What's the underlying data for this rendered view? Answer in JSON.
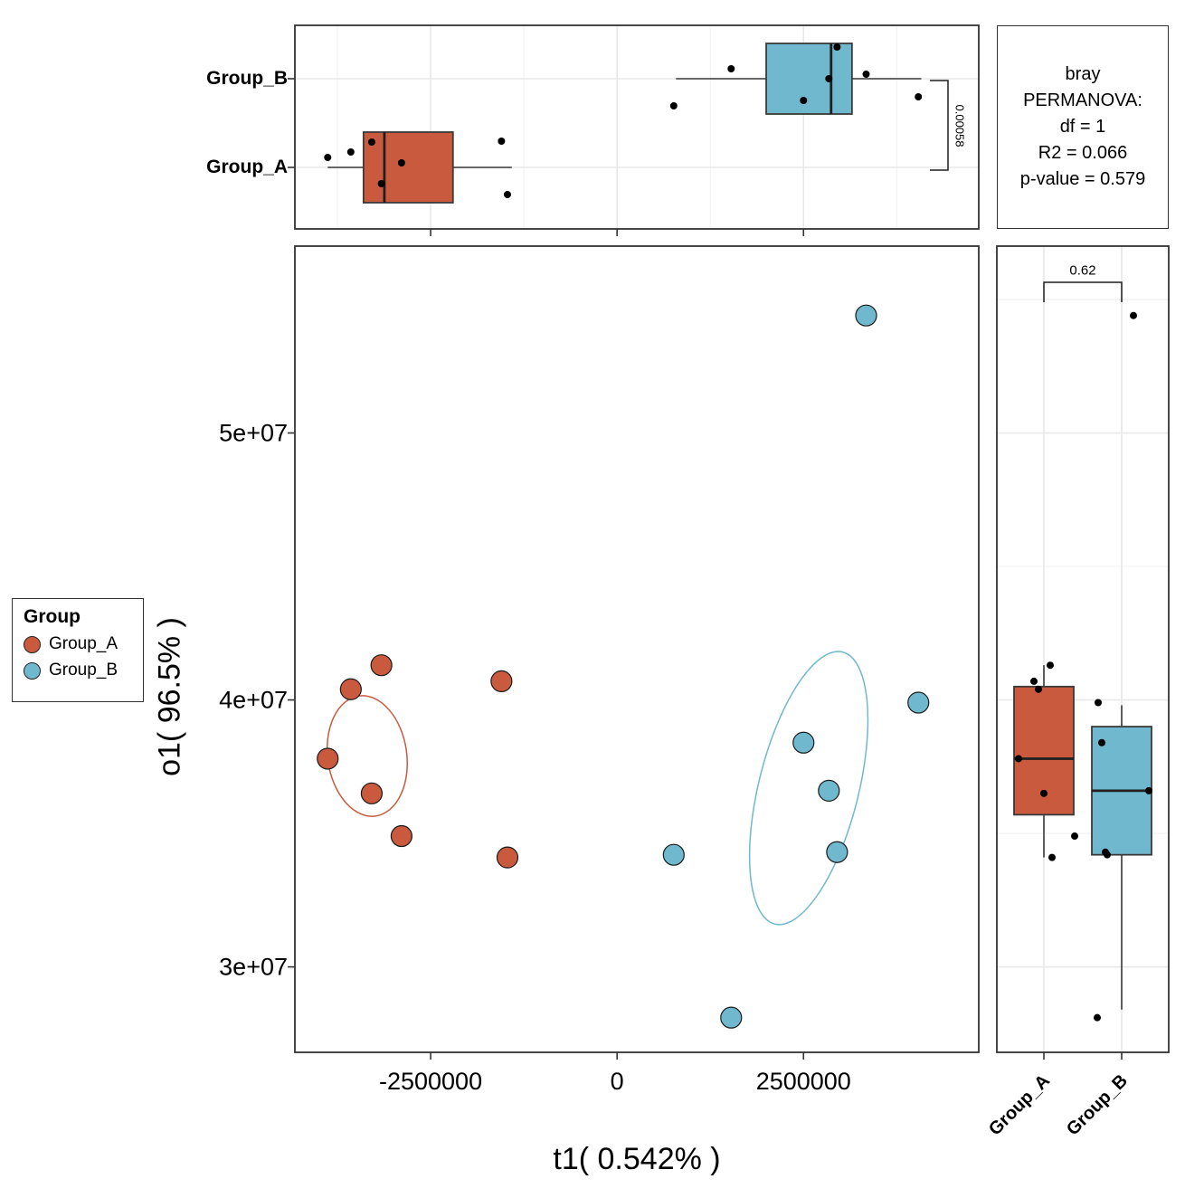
{
  "colors": {
    "group_a": "#C95A3E",
    "group_b": "#70B8CE",
    "box_stroke": "#3A3A3A",
    "panel_border": "#333333",
    "grid_major": "#E8E8E8",
    "grid_minor": "#F4F4F4",
    "point_stroke": "#1a1a1a",
    "jitter_dot": "#000000"
  },
  "legend": {
    "title": "Group",
    "items": [
      {
        "label": "Group_A",
        "color": "#C95A3E"
      },
      {
        "label": "Group_B",
        "color": "#70B8CE"
      }
    ]
  },
  "permanova": {
    "line1": "bray",
    "line2": "PERMANOVA:",
    "line3": "df = 1",
    "line4": "R2 = 0.066",
    "line5": "p-value = 0.579"
  },
  "chart_data": {
    "type": "scatter",
    "xlabel": "t1( 0.542% )",
    "ylabel": "o1( 96.5% )",
    "x_domain": [
      -4320000,
      4850000
    ],
    "y_domain": [
      26800000,
      57000000
    ],
    "x_ticks": [
      {
        "value": -2500000,
        "label": "-2500000"
      },
      {
        "value": 0,
        "label": "0"
      },
      {
        "value": 2500000,
        "label": "2500000"
      }
    ],
    "x_minor_ticks": [
      -3750000,
      -1250000,
      1250000,
      3750000
    ],
    "y_ticks": [
      {
        "value": 50000000,
        "label": "5e+07"
      },
      {
        "value": 40000000,
        "label": "4e+07"
      },
      {
        "value": 30000000,
        "label": "3e+07"
      }
    ],
    "y_minor_ticks": [
      55000000,
      45000000,
      35000000
    ],
    "grid": {
      "main_panel": false,
      "marginal_panels": true
    },
    "legend_position": "left-middle",
    "groups": [
      {
        "name": "Group_A",
        "color": "#C95A3E",
        "points": [
          [
            -3160000,
            41300000
          ],
          [
            -3570000,
            40400000
          ],
          [
            -1550000,
            40700000
          ],
          [
            -3880000,
            37800000
          ],
          [
            -3290000,
            36500000
          ],
          [
            -2890000,
            34900000
          ],
          [
            -1470000,
            34100000
          ]
        ],
        "ellipse": {
          "cx": -3350000,
          "cy": 37900000,
          "rx": 530000,
          "ry": 2270000,
          "rot_deg": -8
        },
        "x_box": {
          "min": -3880000,
          "q1": -3400000,
          "median": -3120000,
          "q3": -2200000,
          "max": -1410000
        },
        "y_box": {
          "min": 34100000,
          "q1": 35700000,
          "median": 37800000,
          "q3": 40500000,
          "max": 41300000
        },
        "x_jitter": [
          [
            -3880000,
            -11
          ],
          [
            -3570000,
            -17
          ],
          [
            -3290000,
            -28
          ],
          [
            -3160000,
            18
          ],
          [
            -2890000,
            -5
          ],
          [
            -1550000,
            -29
          ],
          [
            -1470000,
            30
          ]
        ],
        "y_jitter": [
          [
            41300000,
            7
          ],
          [
            40700000,
            -11
          ],
          [
            40400000,
            -6
          ],
          [
            37800000,
            -28
          ],
          [
            36500000,
            0
          ],
          [
            34900000,
            34
          ],
          [
            34100000,
            9
          ]
        ]
      },
      {
        "name": "Group_B",
        "color": "#70B8CE",
        "points": [
          [
            3340000,
            54400000
          ],
          [
            4040000,
            39900000
          ],
          [
            2500000,
            38400000
          ],
          [
            2840000,
            36600000
          ],
          [
            2950000,
            34300000
          ],
          [
            760000,
            34200000
          ],
          [
            1530000,
            28100000
          ]
        ],
        "ellipse": {
          "cx": 2570000,
          "cy": 36700000,
          "rx": 670000,
          "ry": 5250000,
          "rot_deg": 14
        },
        "x_box": {
          "min": 790000,
          "q1": 2000000,
          "median": 2870000,
          "q3": 3150000,
          "max": 4080000
        },
        "y_box": {
          "min": 28400000,
          "q1": 34200000,
          "median": 36600000,
          "q3": 39000000,
          "max": 39800000
        },
        "x_jitter": [
          [
            760000,
            30
          ],
          [
            1530000,
            -11
          ],
          [
            2500000,
            24
          ],
          [
            2840000,
            0
          ],
          [
            2950000,
            -35
          ],
          [
            3340000,
            -5
          ],
          [
            4040000,
            20
          ]
        ],
        "y_jitter": [
          [
            54400000,
            13
          ],
          [
            39900000,
            -26
          ],
          [
            38400000,
            -22
          ],
          [
            36600000,
            30
          ],
          [
            34300000,
            -18
          ],
          [
            34200000,
            -16
          ],
          [
            28100000,
            -27
          ]
        ]
      }
    ],
    "significance": {
      "top_label": "0.00058",
      "right_label": "0.62"
    }
  }
}
